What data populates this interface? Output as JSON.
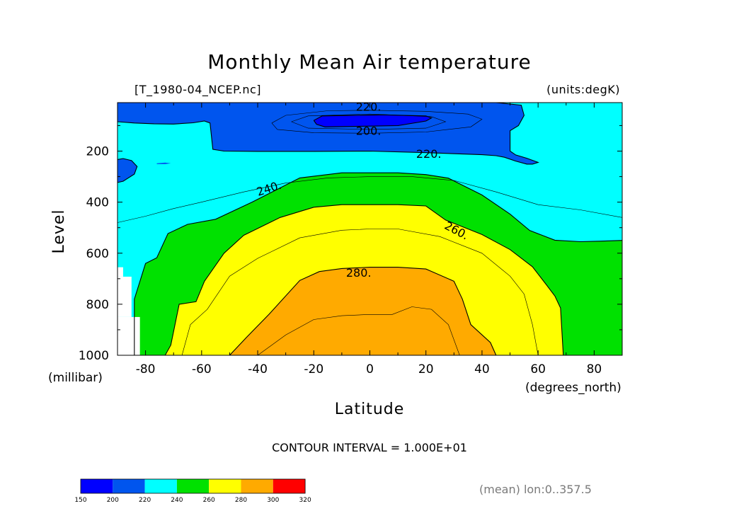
{
  "chart_data": {
    "type": "contour",
    "title": "Monthly Mean Air temperature",
    "source_label": "[T_1980-04_NCEP.nc]",
    "units_label": "(units:degK)",
    "xlabel": "Latitude",
    "x_units": "(degrees_north)",
    "ylabel": "Level",
    "y_units": "(millibar)",
    "xlim": [
      -90,
      90
    ],
    "ylim": [
      1000,
      10
    ],
    "x_ticks": [
      {
        "value": -80,
        "label": "-80"
      },
      {
        "value": -60,
        "label": "-60"
      },
      {
        "value": -40,
        "label": "-40"
      },
      {
        "value": -20,
        "label": "-20"
      },
      {
        "value": 0,
        "label": "0"
      },
      {
        "value": 20,
        "label": "20"
      },
      {
        "value": 40,
        "label": "40"
      },
      {
        "value": 60,
        "label": "60"
      },
      {
        "value": 80,
        "label": "80"
      }
    ],
    "y_ticks": [
      {
        "value": 200,
        "label": "200"
      },
      {
        "value": 400,
        "label": "400"
      },
      {
        "value": 600,
        "label": "600"
      },
      {
        "value": 800,
        "label": "800"
      },
      {
        "value": 1000,
        "label": "1000"
      }
    ],
    "contour_labels": [
      {
        "text": "220.",
        "lat": -0.5,
        "lev": 25
      },
      {
        "text": "200.",
        "lat": -0.5,
        "lev": 120
      },
      {
        "text": "220.",
        "lat": 21,
        "lev": 210
      },
      {
        "text": "240.",
        "lat": -36,
        "lev": 345
      },
      {
        "text": "260.",
        "lat": 31,
        "lev": 510
      },
      {
        "text": "280.",
        "lat": -4,
        "lev": 675
      }
    ],
    "contour_interval": "CONTOUR INTERVAL = 1.000E+01",
    "colorbar": {
      "ticks": [
        "150",
        "200",
        "220",
        "240",
        "260",
        "280",
        "300",
        "320"
      ],
      "colors": [
        "#0000ff",
        "#0055ee",
        "#00ffff",
        "#00e100",
        "#ffff00",
        "#ffaa00",
        "#ff0000"
      ]
    },
    "regions": [
      {
        "level_min": 200,
        "color": "#0055ee",
        "boundary": [
          [
            -90,
            1
          ],
          [
            -90,
            85
          ],
          [
            -84,
            90
          ],
          [
            -77,
            93
          ],
          [
            -70,
            94
          ],
          [
            -63,
            89
          ],
          [
            -59,
            82
          ],
          [
            -57,
            90
          ],
          [
            -56,
            193
          ],
          [
            -52,
            200
          ],
          [
            -40,
            201
          ],
          [
            -20,
            201
          ],
          [
            0,
            200
          ],
          [
            20,
            206
          ],
          [
            40,
            214
          ],
          [
            45,
            218
          ],
          [
            48,
            224
          ],
          [
            52,
            239
          ],
          [
            56,
            251
          ],
          [
            58,
            251
          ],
          [
            60,
            244
          ],
          [
            56,
            228
          ],
          [
            52,
            215
          ],
          [
            50,
            200
          ],
          [
            50,
            120
          ],
          [
            53,
            100
          ],
          [
            55,
            60
          ],
          [
            54,
            20
          ],
          [
            45,
            10
          ],
          [
            30,
            5
          ],
          [
            0,
            2
          ],
          [
            -45,
            1
          ]
        ]
      },
      {
        "level_min": 200,
        "color": "#0055ee",
        "boundary": [
          [
            -90,
            233
          ],
          [
            -88,
            229
          ],
          [
            -85,
            237
          ],
          [
            -83,
            260
          ],
          [
            -84,
            290
          ],
          [
            -88,
            318
          ],
          [
            -90,
            323
          ]
        ]
      },
      {
        "level_min": 200,
        "color": "#0055ee",
        "boundary": [
          [
            -76,
            248
          ],
          [
            -73,
            245
          ],
          [
            -71,
            248
          ],
          [
            -73,
            251
          ],
          [
            -76,
            251
          ]
        ]
      },
      {
        "level_min": 150,
        "color": "#0000ff",
        "boundary": [
          [
            -20,
            80
          ],
          [
            -17,
            62
          ],
          [
            5,
            58
          ],
          [
            20,
            62
          ],
          [
            22,
            70
          ],
          [
            20,
            82
          ],
          [
            10,
            100
          ],
          [
            -16,
            105
          ],
          [
            -19,
            95
          ]
        ]
      },
      {
        "level_min": 240,
        "color": "#00e100",
        "boundary": [
          [
            -84,
            1000
          ],
          [
            -84,
            780
          ],
          [
            -80,
            640
          ],
          [
            -76,
            618
          ],
          [
            -72,
            523
          ],
          [
            -65,
            487
          ],
          [
            -55,
            467
          ],
          [
            -42,
            400
          ],
          [
            -25,
            305
          ],
          [
            -10,
            285
          ],
          [
            0,
            285
          ],
          [
            10,
            285
          ],
          [
            20,
            292
          ],
          [
            28,
            306
          ],
          [
            40,
            372
          ],
          [
            50,
            447
          ],
          [
            57,
            511
          ],
          [
            66,
            549
          ],
          [
            75,
            555
          ],
          [
            82,
            553
          ],
          [
            90,
            550
          ],
          [
            90,
            1000
          ]
        ]
      },
      {
        "level_min": 260,
        "color": "#ffff00",
        "boundary": [
          [
            -73,
            1000
          ],
          [
            -71,
            960
          ],
          [
            -68,
            800
          ],
          [
            -62,
            790
          ],
          [
            -59,
            710
          ],
          [
            -52,
            600
          ],
          [
            -45,
            530
          ],
          [
            -32,
            460
          ],
          [
            -20,
            420
          ],
          [
            -10,
            410
          ],
          [
            0,
            410
          ],
          [
            10,
            410
          ],
          [
            20,
            415
          ],
          [
            27,
            470
          ],
          [
            40,
            527
          ],
          [
            50,
            586
          ],
          [
            58,
            653
          ],
          [
            63,
            724
          ],
          [
            66,
            768
          ],
          [
            68,
            815
          ],
          [
            69,
            1000
          ]
        ]
      },
      {
        "level_min": 280,
        "color": "#ffaa00",
        "boundary": [
          [
            -50,
            1000
          ],
          [
            -44,
            930
          ],
          [
            -36,
            840
          ],
          [
            -25,
            707
          ],
          [
            -18,
            672
          ],
          [
            -10,
            660
          ],
          [
            0,
            655
          ],
          [
            10,
            655
          ],
          [
            20,
            662
          ],
          [
            30,
            710
          ],
          [
            33,
            780
          ],
          [
            36,
            880
          ],
          [
            43,
            950
          ],
          [
            45,
            1000
          ]
        ]
      }
    ],
    "isolines": [
      [
        [
          -84,
          1000
        ],
        [
          -84,
          780
        ],
        [
          -80,
          640
        ],
        [
          -76,
          618
        ],
        [
          -72,
          523
        ],
        [
          -65,
          487
        ],
        [
          -55,
          467
        ],
        [
          -42,
          400
        ],
        [
          -25,
          305
        ],
        [
          -10,
          285
        ],
        [
          0,
          285
        ],
        [
          10,
          285
        ],
        [
          20,
          292
        ],
        [
          28,
          306
        ],
        [
          40,
          372
        ],
        [
          50,
          447
        ],
        [
          57,
          511
        ],
        [
          66,
          549
        ],
        [
          75,
          555
        ],
        [
          82,
          553
        ],
        [
          90,
          550
        ]
      ],
      [
        [
          -73,
          1000
        ],
        [
          -71,
          960
        ],
        [
          -68,
          800
        ],
        [
          -62,
          790
        ],
        [
          -59,
          710
        ],
        [
          -52,
          600
        ],
        [
          -45,
          530
        ],
        [
          -32,
          460
        ],
        [
          -20,
          420
        ],
        [
          -10,
          410
        ],
        [
          0,
          410
        ],
        [
          10,
          410
        ],
        [
          20,
          415
        ],
        [
          27,
          470
        ],
        [
          40,
          527
        ],
        [
          50,
          586
        ],
        [
          58,
          653
        ],
        [
          63,
          724
        ],
        [
          66,
          768
        ],
        [
          68,
          815
        ],
        [
          69,
          1000
        ]
      ],
      [
        [
          -50,
          1000
        ],
        [
          -44,
          930
        ],
        [
          -36,
          840
        ],
        [
          -25,
          707
        ],
        [
          -18,
          672
        ],
        [
          -10,
          660
        ],
        [
          0,
          655
        ],
        [
          10,
          655
        ],
        [
          20,
          662
        ],
        [
          30,
          710
        ],
        [
          33,
          780
        ],
        [
          36,
          880
        ],
        [
          43,
          950
        ],
        [
          45,
          1000
        ]
      ],
      [
        [
          -90,
          85
        ],
        [
          -84,
          90
        ],
        [
          -77,
          93
        ],
        [
          -70,
          94
        ],
        [
          -63,
          89
        ],
        [
          -59,
          82
        ],
        [
          -57,
          90
        ],
        [
          -56,
          193
        ],
        [
          -52,
          200
        ],
        [
          -40,
          201
        ],
        [
          -20,
          201
        ],
        [
          0,
          200
        ],
        [
          20,
          206
        ],
        [
          40,
          214
        ],
        [
          45,
          218
        ],
        [
          48,
          224
        ],
        [
          52,
          239
        ],
        [
          56,
          251
        ],
        [
          58,
          251
        ],
        [
          60,
          244
        ],
        [
          56,
          228
        ],
        [
          52,
          215
        ],
        [
          50,
          200
        ],
        [
          50,
          120
        ],
        [
          53,
          100
        ],
        [
          55,
          60
        ],
        [
          54,
          20
        ],
        [
          45,
          10
        ]
      ],
      [
        [
          -90,
          233
        ],
        [
          -88,
          229
        ],
        [
          -85,
          237
        ],
        [
          -83,
          260
        ],
        [
          -84,
          290
        ],
        [
          -88,
          318
        ],
        [
          -90,
          323
        ]
      ],
      [
        [
          -20,
          80
        ],
        [
          -17,
          62
        ],
        [
          5,
          58
        ],
        [
          20,
          62
        ],
        [
          22,
          70
        ],
        [
          20,
          82
        ],
        [
          10,
          100
        ],
        [
          -16,
          105
        ],
        [
          -19,
          95
        ],
        [
          -20,
          80
        ]
      ],
      [
        [
          -90,
          480
        ],
        [
          -80,
          455
        ],
        [
          -70,
          425
        ],
        [
          -60,
          400
        ],
        [
          -45,
          360
        ],
        [
          -30,
          325
        ],
        [
          -15,
          305
        ],
        [
          0,
          300
        ],
        [
          15,
          300
        ],
        [
          30,
          315
        ],
        [
          45,
          360
        ],
        [
          60,
          410
        ],
        [
          75,
          430
        ],
        [
          90,
          460
        ]
      ],
      [
        [
          -67,
          1000
        ],
        [
          -64,
          880
        ],
        [
          -58,
          820
        ],
        [
          -50,
          690
        ],
        [
          -40,
          620
        ],
        [
          -25,
          540
        ],
        [
          -10,
          510
        ],
        [
          0,
          505
        ],
        [
          10,
          505
        ],
        [
          25,
          535
        ],
        [
          40,
          600
        ],
        [
          50,
          690
        ],
        [
          55,
          760
        ],
        [
          58,
          880
        ],
        [
          60,
          1000
        ]
      ],
      [
        [
          -40,
          1000
        ],
        [
          -30,
          920
        ],
        [
          -20,
          860
        ],
        [
          -10,
          845
        ],
        [
          0,
          840
        ],
        [
          8,
          840
        ],
        [
          15,
          810
        ],
        [
          22,
          820
        ],
        [
          28,
          880
        ],
        [
          32,
          1000
        ]
      ],
      [
        [
          -35,
          90
        ],
        [
          -30,
          60
        ],
        [
          -15,
          42
        ],
        [
          0,
          40
        ],
        [
          20,
          44
        ],
        [
          35,
          55
        ],
        [
          40,
          75
        ],
        [
          36,
          105
        ],
        [
          20,
          125
        ],
        [
          0,
          130
        ],
        [
          -20,
          128
        ],
        [
          -33,
          115
        ],
        [
          -35,
          90
        ]
      ],
      [
        [
          -28,
          85
        ],
        [
          -22,
          62
        ],
        [
          0,
          55
        ],
        [
          22,
          65
        ],
        [
          27,
          85
        ],
        [
          20,
          110
        ],
        [
          0,
          115
        ],
        [
          -22,
          110
        ],
        [
          -28,
          85
        ]
      ]
    ]
  },
  "footer_right": "(mean) lon:0..357.5"
}
